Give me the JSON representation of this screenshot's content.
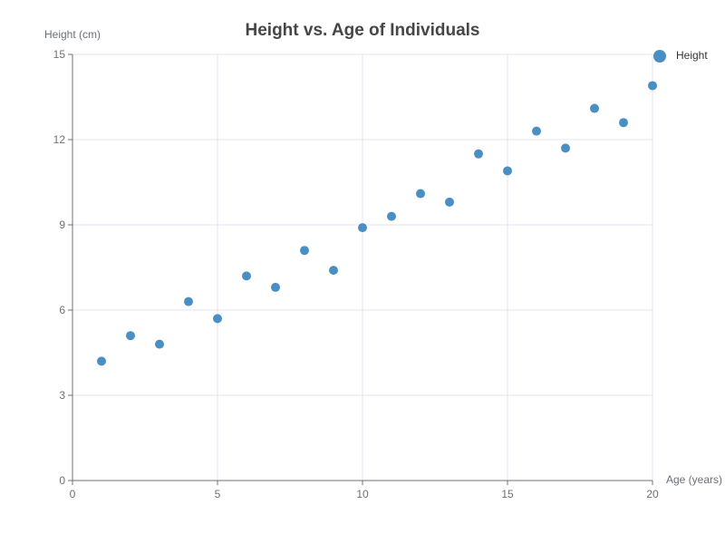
{
  "chart_data": {
    "type": "scatter",
    "title": "Height vs. Age of Individuals",
    "xlabel": "Age (years)",
    "ylabel": "Height (cm)",
    "xlim": [
      0,
      20
    ],
    "ylim": [
      0,
      15
    ],
    "xticks": [
      0,
      5,
      10,
      15,
      20
    ],
    "yticks": [
      0,
      3,
      6,
      9,
      12,
      15
    ],
    "grid": true,
    "legend_position": "top-right",
    "series": [
      {
        "name": "Height",
        "color": "#4a8fc4",
        "points": [
          {
            "x": 1,
            "y": 4.2
          },
          {
            "x": 2,
            "y": 5.1
          },
          {
            "x": 3,
            "y": 4.8
          },
          {
            "x": 4,
            "y": 6.3
          },
          {
            "x": 5,
            "y": 5.7
          },
          {
            "x": 6,
            "y": 7.2
          },
          {
            "x": 7,
            "y": 6.8
          },
          {
            "x": 8,
            "y": 8.1
          },
          {
            "x": 9,
            "y": 7.4
          },
          {
            "x": 10,
            "y": 8.9
          },
          {
            "x": 11,
            "y": 9.3
          },
          {
            "x": 12,
            "y": 10.1
          },
          {
            "x": 13,
            "y": 9.8
          },
          {
            "x": 14,
            "y": 11.5
          },
          {
            "x": 15,
            "y": 10.9
          },
          {
            "x": 16,
            "y": 12.3
          },
          {
            "x": 17,
            "y": 11.7
          },
          {
            "x": 18,
            "y": 13.1
          },
          {
            "x": 19,
            "y": 12.6
          },
          {
            "x": 20,
            "y": 13.9
          }
        ]
      }
    ]
  }
}
